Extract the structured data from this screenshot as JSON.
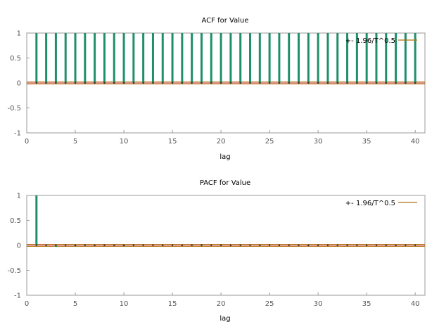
{
  "colors": {
    "bar": "#1f8f6b",
    "band": "#b5720f",
    "zero": "#c0392b",
    "axis": "#999999"
  },
  "chart_data": [
    {
      "type": "bar",
      "title": "ACF for Value",
      "xlabel": "lag",
      "ylabel": "",
      "xlim": [
        0,
        41
      ],
      "ylim": [
        -1,
        1
      ],
      "xticks": [
        0,
        5,
        10,
        15,
        20,
        25,
        30,
        35,
        40
      ],
      "yticks": [
        1,
        0.5,
        0,
        -0.5,
        -1
      ],
      "legend": {
        "label": "+- 1.96/T^0.5",
        "position": "top-right"
      },
      "band": 0.007,
      "lags": [
        1,
        2,
        3,
        4,
        5,
        6,
        7,
        8,
        9,
        10,
        11,
        12,
        13,
        14,
        15,
        16,
        17,
        18,
        19,
        20,
        21,
        22,
        23,
        24,
        25,
        26,
        27,
        28,
        29,
        30,
        31,
        32,
        33,
        34,
        35,
        36,
        37,
        38,
        39,
        40
      ],
      "values": [
        1.0,
        1.0,
        1.0,
        1.0,
        1.0,
        1.0,
        1.0,
        1.0,
        1.0,
        1.0,
        1.0,
        1.0,
        1.0,
        1.0,
        1.0,
        1.0,
        1.0,
        1.0,
        1.0,
        1.0,
        1.0,
        1.0,
        1.0,
        1.0,
        1.0,
        1.0,
        1.0,
        1.0,
        1.0,
        1.0,
        1.0,
        1.0,
        1.0,
        1.0,
        1.0,
        1.0,
        1.0,
        1.0,
        1.0,
        1.0
      ]
    },
    {
      "type": "bar",
      "title": "PACF for Value",
      "xlabel": "lag",
      "ylabel": "",
      "xlim": [
        0,
        41
      ],
      "ylim": [
        -1,
        1
      ],
      "xticks": [
        0,
        5,
        10,
        15,
        20,
        25,
        30,
        35,
        40
      ],
      "yticks": [
        1,
        0.5,
        0,
        -0.5,
        -1
      ],
      "legend": {
        "label": "+- 1.96/T^0.5",
        "position": "top-right"
      },
      "band": 0.007,
      "lags": [
        1,
        2,
        3,
        4,
        5,
        6,
        7,
        8,
        9,
        10,
        11,
        12,
        13,
        14,
        15,
        16,
        17,
        18,
        19,
        20,
        21,
        22,
        23,
        24,
        25,
        26,
        27,
        28,
        29,
        30,
        31,
        32,
        33,
        34,
        35,
        36,
        37,
        38,
        39,
        40
      ],
      "values": [
        1.0,
        -0.01,
        -0.03,
        0.01,
        -0.02,
        0.01,
        -0.01,
        0.01,
        0.01,
        -0.02,
        0.01,
        0.01,
        0.0,
        -0.01,
        0.01,
        -0.01,
        0.01,
        0.02,
        0.0,
        0.01,
        -0.01,
        0.01,
        0.0,
        -0.01,
        0.01,
        -0.01,
        0.0,
        0.01,
        -0.01,
        0.01,
        0.0,
        -0.01,
        0.01,
        0.0,
        -0.01,
        0.01,
        0.0,
        -0.01,
        0.01,
        0.01
      ]
    }
  ]
}
